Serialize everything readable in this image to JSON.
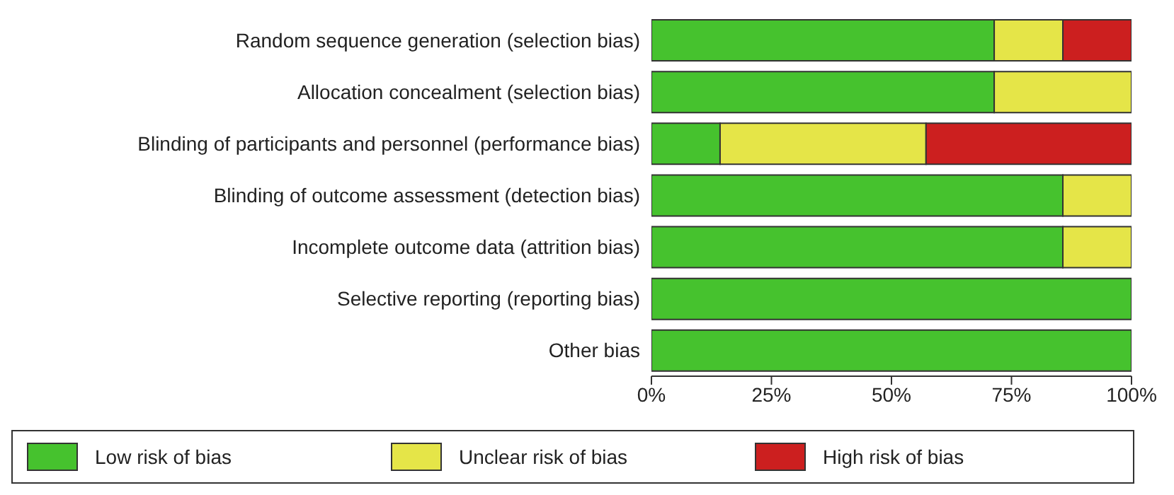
{
  "chart_data": {
    "type": "bar",
    "orientation": "horizontal",
    "stacked": true,
    "categories": [
      "Random sequence generation (selection bias)",
      "Allocation concealment (selection bias)",
      "Blinding of participants and personnel (performance bias)",
      "Blinding of outcome assessment (detection bias)",
      "Incomplete outcome data (attrition bias)",
      "Selective reporting (reporting bias)",
      "Other bias"
    ],
    "series": [
      {
        "name": "Low risk of bias",
        "color": "#46c22e",
        "values": [
          71.4,
          71.4,
          14.3,
          85.7,
          85.7,
          100,
          100
        ]
      },
      {
        "name": "Unclear risk of bias",
        "color": "#e5e548",
        "values": [
          14.3,
          28.6,
          42.9,
          14.3,
          14.3,
          0,
          0
        ]
      },
      {
        "name": "High risk of bias",
        "color": "#cc1f1f",
        "values": [
          14.3,
          0,
          42.9,
          0,
          0,
          0,
          0
        ]
      }
    ],
    "xlim": [
      0,
      100
    ],
    "xticks": [
      {
        "value": 0,
        "label": "0%"
      },
      {
        "value": 25,
        "label": "25%"
      },
      {
        "value": 50,
        "label": "50%"
      },
      {
        "value": 75,
        "label": "75%"
      },
      {
        "value": 100,
        "label": "100%"
      }
    ],
    "legend": "bottom",
    "grid": false
  }
}
